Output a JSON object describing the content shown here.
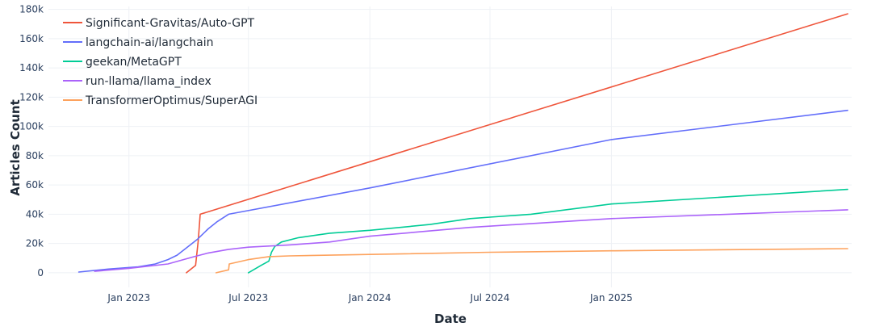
{
  "chart_data": {
    "type": "line",
    "title": "",
    "xlabel": "Date",
    "ylabel": "Articles Count",
    "x_type": "date",
    "xlim": [
      "2022-09-01",
      "2025-12-31"
    ],
    "ylim": [
      -10000,
      182000
    ],
    "grid": true,
    "legend_position": "top-left",
    "x_ticks": [
      {
        "date": "2023-01-01",
        "label": "Jan 2023"
      },
      {
        "date": "2023-07-01",
        "label": "Jul 2023"
      },
      {
        "date": "2024-01-01",
        "label": "Jan 2024"
      },
      {
        "date": "2024-07-01",
        "label": "Jul 2024"
      },
      {
        "date": "2025-01-01",
        "label": "Jan 2025"
      }
    ],
    "y_ticks": [
      {
        "value": 0,
        "label": "0"
      },
      {
        "value": 20000,
        "label": "20k"
      },
      {
        "value": 40000,
        "label": "40k"
      },
      {
        "value": 60000,
        "label": "60k"
      },
      {
        "value": 80000,
        "label": "80k"
      },
      {
        "value": 100000,
        "label": "100k"
      },
      {
        "value": 120000,
        "label": "120k"
      },
      {
        "value": 140000,
        "label": "140k"
      },
      {
        "value": 160000,
        "label": "160k"
      },
      {
        "value": 180000,
        "label": "180k"
      }
    ],
    "series": [
      {
        "name": "Significant-Gravitas/Auto-GPT",
        "color": "#ef553b",
        "points": [
          [
            "2023-03-29",
            0
          ],
          [
            "2023-04-12",
            5000
          ],
          [
            "2023-04-16",
            22000
          ],
          [
            "2023-04-19",
            40000
          ],
          [
            "2025-12-25",
            177000
          ]
        ]
      },
      {
        "name": "langchain-ai/langchain",
        "color": "#636efa",
        "points": [
          [
            "2022-10-17",
            500
          ],
          [
            "2022-12-01",
            2500
          ],
          [
            "2023-01-15",
            4000
          ],
          [
            "2023-02-10",
            6000
          ],
          [
            "2023-03-01",
            9000
          ],
          [
            "2023-03-15",
            12000
          ],
          [
            "2023-04-01",
            18000
          ],
          [
            "2023-04-15",
            23000
          ],
          [
            "2023-05-01",
            30000
          ],
          [
            "2023-05-15",
            35000
          ],
          [
            "2023-06-01",
            40000
          ],
          [
            "2024-01-01",
            58000
          ],
          [
            "2025-01-01",
            91000
          ],
          [
            "2025-12-25",
            111000
          ]
        ]
      },
      {
        "name": "geekan/MetaGPT",
        "color": "#00cc96",
        "points": [
          [
            "2023-07-01",
            0
          ],
          [
            "2023-07-20",
            5000
          ],
          [
            "2023-08-01",
            8000
          ],
          [
            "2023-08-05",
            14000
          ],
          [
            "2023-08-10",
            18000
          ],
          [
            "2023-08-20",
            21000
          ],
          [
            "2023-09-15",
            24000
          ],
          [
            "2023-11-01",
            27000
          ],
          [
            "2024-01-01",
            29000
          ],
          [
            "2024-04-01",
            33000
          ],
          [
            "2024-06-01",
            37000
          ],
          [
            "2024-07-01",
            38000
          ],
          [
            "2024-09-01",
            40000
          ],
          [
            "2025-01-01",
            47000
          ],
          [
            "2025-12-25",
            57000
          ]
        ]
      },
      {
        "name": "run-llama/llama_index",
        "color": "#ab63fa",
        "points": [
          [
            "2022-11-10",
            1000
          ],
          [
            "2023-01-01",
            3000
          ],
          [
            "2023-03-01",
            6000
          ],
          [
            "2023-04-10",
            11000
          ],
          [
            "2023-05-01",
            13500
          ],
          [
            "2023-06-01",
            16000
          ],
          [
            "2023-07-01",
            17500
          ],
          [
            "2023-09-01",
            19000
          ],
          [
            "2023-11-01",
            21000
          ],
          [
            "2024-01-01",
            25000
          ],
          [
            "2024-06-01",
            31000
          ],
          [
            "2025-01-01",
            37000
          ],
          [
            "2025-12-25",
            43000
          ]
        ]
      },
      {
        "name": "TransformerOptimus/SuperAGI",
        "color": "#fda25d",
        "points": [
          [
            "2023-05-13",
            0
          ],
          [
            "2023-06-01",
            2000
          ],
          [
            "2023-06-02",
            6000
          ],
          [
            "2023-07-01",
            9000
          ],
          [
            "2023-08-01",
            11000
          ],
          [
            "2023-09-01",
            11500
          ],
          [
            "2023-11-01",
            12000
          ],
          [
            "2024-01-01",
            12500
          ],
          [
            "2024-07-01",
            14000
          ],
          [
            "2025-01-01",
            15000
          ],
          [
            "2025-12-25",
            16500
          ]
        ]
      }
    ]
  }
}
